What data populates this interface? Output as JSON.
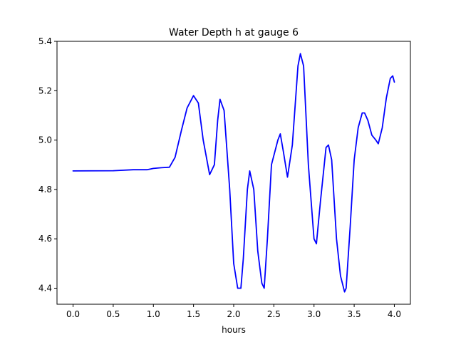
{
  "chart_data": {
    "type": "line",
    "title": "Water Depth h at gauge 6",
    "xlabel": "hours",
    "ylabel": "",
    "xlim": [
      -0.2,
      4.2
    ],
    "ylim": [
      4.335,
      5.4
    ],
    "grid": false,
    "legend": "none",
    "x_ticks": [
      "0.0",
      "0.5",
      "1.0",
      "1.5",
      "2.0",
      "2.5",
      "3.0",
      "3.5",
      "4.0"
    ],
    "x_tick_values": [
      0.0,
      0.5,
      1.0,
      1.5,
      2.0,
      2.5,
      3.0,
      3.5,
      4.0
    ],
    "y_ticks": [
      "4.4",
      "4.6",
      "4.8",
      "5.0",
      "5.2",
      "5.4"
    ],
    "y_tick_values": [
      4.4,
      4.6,
      4.8,
      5.0,
      5.2,
      5.4
    ],
    "series": [
      {
        "color": "#0000ff",
        "x": [
          0.0,
          0.5,
          0.75,
          0.92,
          1.0,
          1.1,
          1.2,
          1.27,
          1.35,
          1.42,
          1.5,
          1.56,
          1.62,
          1.7,
          1.76,
          1.8,
          1.83,
          1.88,
          1.95,
          2.0,
          2.05,
          2.09,
          2.12,
          2.17,
          2.2,
          2.25,
          2.3,
          2.35,
          2.38,
          2.42,
          2.47,
          2.55,
          2.58,
          2.62,
          2.67,
          2.73,
          2.8,
          2.83,
          2.87,
          2.93,
          3.0,
          3.03,
          3.08,
          3.15,
          3.18,
          3.22,
          3.28,
          3.33,
          3.38,
          3.4,
          3.45,
          3.5,
          3.55,
          3.6,
          3.63,
          3.67,
          3.72,
          3.77,
          3.8,
          3.85,
          3.9,
          3.95,
          3.98,
          4.0
        ],
        "y": [
          4.875,
          4.876,
          4.88,
          4.88,
          4.885,
          4.888,
          4.89,
          4.93,
          5.04,
          5.13,
          5.18,
          5.15,
          5.0,
          4.86,
          4.9,
          5.08,
          5.165,
          5.12,
          4.8,
          4.5,
          4.4,
          4.4,
          4.52,
          4.8,
          4.875,
          4.8,
          4.55,
          4.42,
          4.4,
          4.6,
          4.9,
          5.0,
          5.025,
          4.95,
          4.85,
          4.98,
          5.3,
          5.35,
          5.3,
          4.9,
          4.6,
          4.58,
          4.75,
          4.97,
          4.98,
          4.92,
          4.6,
          4.45,
          4.385,
          4.4,
          4.65,
          4.92,
          5.05,
          5.11,
          5.11,
          5.08,
          5.02,
          5.0,
          4.985,
          5.05,
          5.17,
          5.25,
          5.26,
          5.235
        ]
      }
    ]
  }
}
